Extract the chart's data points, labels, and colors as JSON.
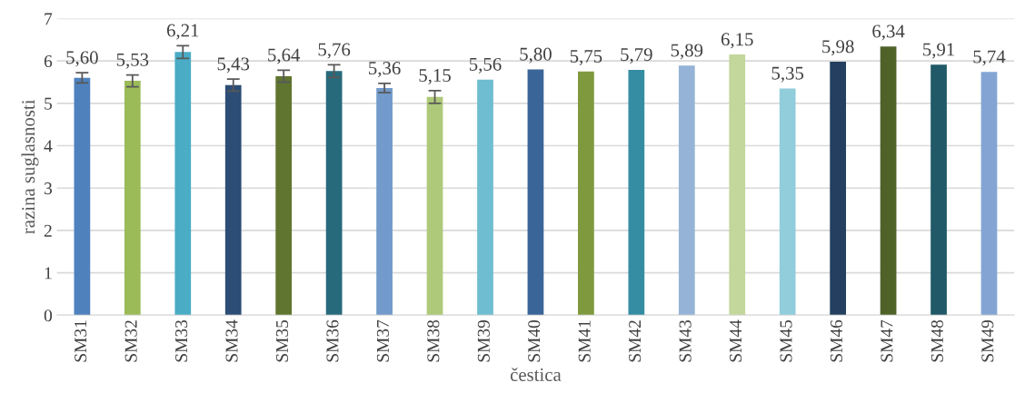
{
  "chart_data": {
    "type": "bar",
    "xlabel": "čestica",
    "ylabel": "razina suglasnosti",
    "categories": [
      "SM31",
      "SM32",
      "SM33",
      "SM34",
      "SM35",
      "SM36",
      "SM37",
      "SM38",
      "SM39",
      "SM40",
      "SM41",
      "SM42",
      "SM43",
      "SM44",
      "SM45",
      "SM46",
      "SM47",
      "SM48",
      "SM49"
    ],
    "values": [
      5.6,
      5.53,
      6.21,
      5.43,
      5.64,
      5.76,
      5.36,
      5.15,
      5.56,
      5.8,
      5.75,
      5.79,
      5.89,
      6.15,
      5.35,
      5.98,
      6.34,
      5.91,
      5.74
    ],
    "errors": [
      0.12,
      0.14,
      0.15,
      0.14,
      0.14,
      0.15,
      0.11,
      0.15,
      null,
      null,
      null,
      null,
      null,
      null,
      null,
      null,
      null,
      null,
      null
    ],
    "colors": [
      "#4f81bd",
      "#9bbb59",
      "#4bacc6",
      "#2c4d75",
      "#5f7530",
      "#276a7c",
      "#729aca",
      "#afc97a",
      "#6fbdd1",
      "#3a6598",
      "#7f9a3e",
      "#358da3",
      "#95b3d7",
      "#c3d69b",
      "#92cddc",
      "#243f60",
      "#4f6228",
      "#215968",
      "#84a5d3"
    ],
    "value_labels": [
      "5,60",
      "5,53",
      "6,21",
      "5,43",
      "5,64",
      "5,76",
      "5,36",
      "5,15",
      "5,56",
      "5,80",
      "5,75",
      "5,79",
      "5,89",
      "6,15",
      "5,35",
      "5,98",
      "6,34",
      "5,91",
      "5,74"
    ],
    "ylim": [
      0,
      7
    ],
    "yticks": [
      0,
      1,
      2,
      3,
      4,
      5,
      6,
      7
    ],
    "grid": "y",
    "legend": false
  }
}
